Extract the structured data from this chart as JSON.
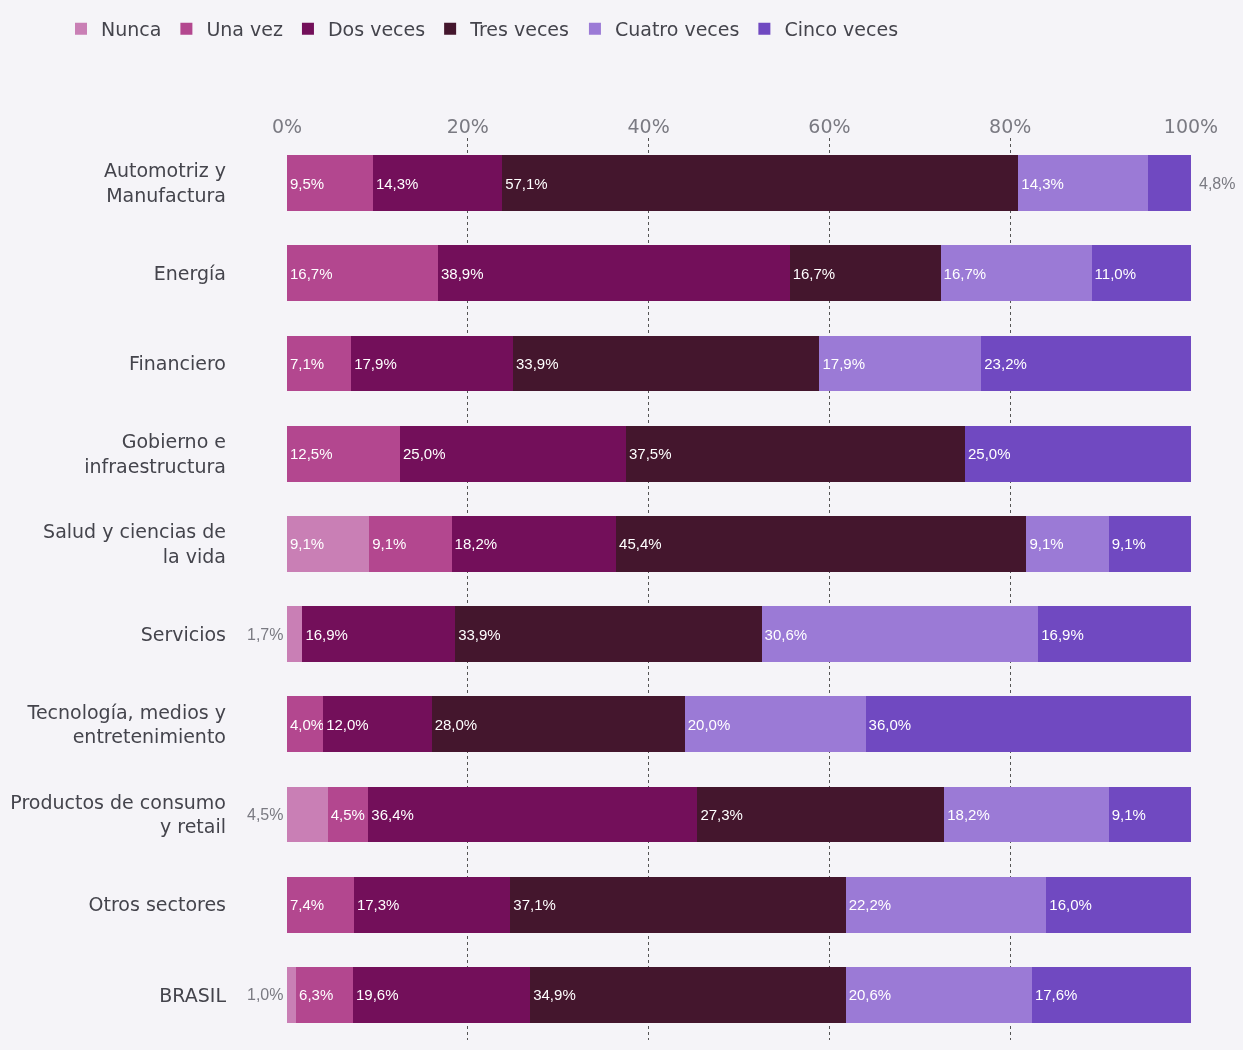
{
  "chart_data": {
    "type": "bar",
    "orientation": "horizontal",
    "stacked": true,
    "categories": [
      "Automotriz y Manufactura",
      "Energía",
      "Financiero",
      "Gobierno e infraestructura",
      "Salud y ciencias de la vida",
      "Servicios",
      "Tecnología, medios y entretenimiento",
      "Productos de consumo y retail",
      "Otros sectores",
      "BRASIL"
    ],
    "series": [
      {
        "name": "Nunca",
        "color": "#c97fb5",
        "values": [
          null,
          null,
          null,
          null,
          9.1,
          1.7,
          null,
          4.5,
          null,
          1.0
        ],
        "value_labels": [
          null,
          null,
          null,
          null,
          "9,1%",
          "1,7%",
          null,
          "4,5%",
          null,
          "1,0%"
        ]
      },
      {
        "name": "Una vez",
        "color": "#b3478f",
        "values": [
          9.5,
          16.7,
          7.1,
          12.5,
          9.1,
          null,
          4.0,
          4.5,
          7.4,
          6.3
        ],
        "value_labels": [
          "9,5%",
          "16,7%",
          "7,1%",
          "12,5%",
          "9,1%",
          null,
          "4,0%",
          "4,5%",
          "7,4%",
          "6,3%"
        ]
      },
      {
        "name": "Dos veces",
        "color": "#730f5a",
        "values": [
          14.3,
          38.9,
          17.9,
          25.0,
          18.2,
          16.9,
          12.0,
          36.4,
          17.3,
          19.6
        ],
        "value_labels": [
          "14,3%",
          "38,9%",
          "17,9%",
          "25,0%",
          "18,2%",
          "16,9%",
          "12,0%",
          "36,4%",
          "17,3%",
          "19,6%"
        ]
      },
      {
        "name": "Tres veces",
        "color": "#44162d",
        "values": [
          57.1,
          16.7,
          33.9,
          37.5,
          45.4,
          33.9,
          28.0,
          27.3,
          37.1,
          34.9
        ],
        "value_labels": [
          "57,1%",
          "16,7%",
          "33,9%",
          "37,5%",
          "45,4%",
          "33,9%",
          "28,0%",
          "27,3%",
          "37,1%",
          "34,9%"
        ]
      },
      {
        "name": "Cuatro veces",
        "color": "#9b7ad6",
        "values": [
          14.3,
          16.7,
          17.9,
          null,
          9.1,
          30.6,
          20.0,
          18.2,
          22.2,
          20.6
        ],
        "value_labels": [
          "14,3%",
          "16,7%",
          "17,9%",
          null,
          "9,1%",
          "30,6%",
          "20,0%",
          "18,2%",
          "22,2%",
          "20,6%"
        ]
      },
      {
        "name": "Cinco veces",
        "color": "#7049c1",
        "values": [
          4.8,
          11.0,
          23.2,
          25.0,
          9.1,
          16.9,
          36.0,
          9.1,
          16.0,
          17.6
        ],
        "value_labels": [
          "4,8%",
          "11,0%",
          "23,2%",
          "25,0%",
          "9,1%",
          "16,9%",
          "36,0%",
          "9,1%",
          "16,0%",
          "17,6%"
        ]
      }
    ],
    "xlim": [
      0,
      100
    ],
    "xticks": [
      {
        "value": 0,
        "label": "0%"
      },
      {
        "value": 20,
        "label": "20%"
      },
      {
        "value": 40,
        "label": "40%"
      },
      {
        "value": 60,
        "label": "60%"
      },
      {
        "value": 80,
        "label": "80%"
      },
      {
        "value": 100,
        "label": "100%"
      }
    ],
    "grid": "x",
    "legend": "top"
  }
}
